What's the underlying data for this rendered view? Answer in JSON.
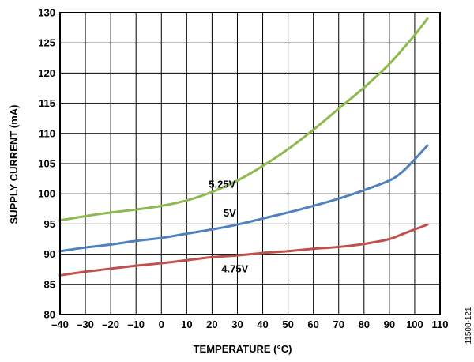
{
  "chart_data": {
    "type": "line",
    "title": "",
    "xlabel": "TEMPERATURE (°C)",
    "ylabel": "SUPPLY CURRENT (mA)",
    "xlim": [
      -40,
      110
    ],
    "ylim": [
      80,
      130
    ],
    "xticks": [
      -40,
      -30,
      -20,
      -10,
      0,
      10,
      20,
      30,
      40,
      50,
      60,
      70,
      80,
      90,
      100,
      110
    ],
    "xtick_labels": [
      "–40",
      "–30",
      "–20",
      "–10",
      "0",
      "10",
      "20",
      "30",
      "40",
      "50",
      "60",
      "70",
      "80",
      "90",
      "100",
      "110"
    ],
    "yticks": [
      80,
      85,
      90,
      95,
      100,
      105,
      110,
      115,
      120,
      125,
      130
    ],
    "ytick_labels": [
      "80",
      "85",
      "90",
      "95",
      "100",
      "105",
      "110",
      "115",
      "120",
      "125",
      "130"
    ],
    "grid": true,
    "legend": "none",
    "annotation": "11508-121",
    "series": [
      {
        "name": "5.25V",
        "color": "#8DB94E",
        "label_at": [
          24,
          101.6
        ],
        "x": [
          -40,
          -30,
          -20,
          -10,
          0,
          10,
          20,
          30,
          40,
          50,
          60,
          70,
          80,
          90,
          100,
          105
        ],
        "y": [
          95.6,
          96.3,
          96.9,
          97.4,
          98.0,
          98.9,
          100.3,
          102.2,
          104.6,
          107.4,
          110.6,
          114.1,
          117.6,
          121.5,
          126.3,
          129.0
        ]
      },
      {
        "name": "5V",
        "color": "#4F81BD",
        "label_at": [
          27,
          96.8
        ],
        "x": [
          -40,
          -30,
          -20,
          -10,
          0,
          10,
          20,
          30,
          40,
          50,
          60,
          70,
          80,
          90,
          95,
          100,
          105
        ],
        "y": [
          90.5,
          91.1,
          91.6,
          92.2,
          92.7,
          93.4,
          94.1,
          94.9,
          95.9,
          96.9,
          98.0,
          99.2,
          100.6,
          102.2,
          103.6,
          105.7,
          108.0
        ]
      },
      {
        "name": "4.75V",
        "color": "#C0504D",
        "label_at": [
          29,
          87.6
        ],
        "x": [
          -40,
          -30,
          -20,
          -10,
          0,
          10,
          20,
          30,
          40,
          50,
          60,
          70,
          80,
          90,
          95,
          100,
          105
        ],
        "y": [
          86.5,
          87.1,
          87.6,
          88.1,
          88.5,
          89.0,
          89.5,
          89.8,
          90.2,
          90.5,
          90.9,
          91.2,
          91.7,
          92.5,
          93.3,
          94.1,
          94.9
        ]
      }
    ]
  }
}
